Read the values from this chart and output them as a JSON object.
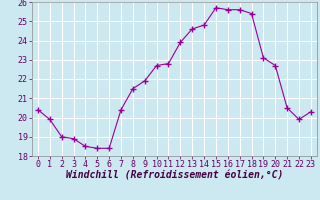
{
  "x": [
    0,
    1,
    2,
    3,
    4,
    5,
    6,
    7,
    8,
    9,
    10,
    11,
    12,
    13,
    14,
    15,
    16,
    17,
    18,
    19,
    20,
    21,
    22,
    23
  ],
  "y": [
    20.4,
    19.9,
    19.0,
    18.9,
    18.5,
    18.4,
    18.4,
    20.4,
    21.5,
    21.9,
    22.7,
    22.8,
    23.9,
    24.6,
    24.8,
    25.7,
    25.6,
    25.6,
    25.4,
    23.1,
    22.7,
    20.5,
    19.9,
    20.3
  ],
  "line_color": "#990099",
  "marker": "+",
  "marker_size": 4,
  "marker_linewidth": 1.0,
  "xlim": [
    -0.5,
    23.5
  ],
  "ylim": [
    18,
    26
  ],
  "yticks": [
    18,
    19,
    20,
    21,
    22,
    23,
    24,
    25,
    26
  ],
  "xticks": [
    0,
    1,
    2,
    3,
    4,
    5,
    6,
    7,
    8,
    9,
    10,
    11,
    12,
    13,
    14,
    15,
    16,
    17,
    18,
    19,
    20,
    21,
    22,
    23
  ],
  "xlabel": "Windchill (Refroidissement éolien,°C)",
  "background_color": "#cce8f0",
  "grid_color": "#ffffff",
  "tick_fontsize": 6,
  "label_fontsize": 7,
  "line_color_dark": "#660066"
}
